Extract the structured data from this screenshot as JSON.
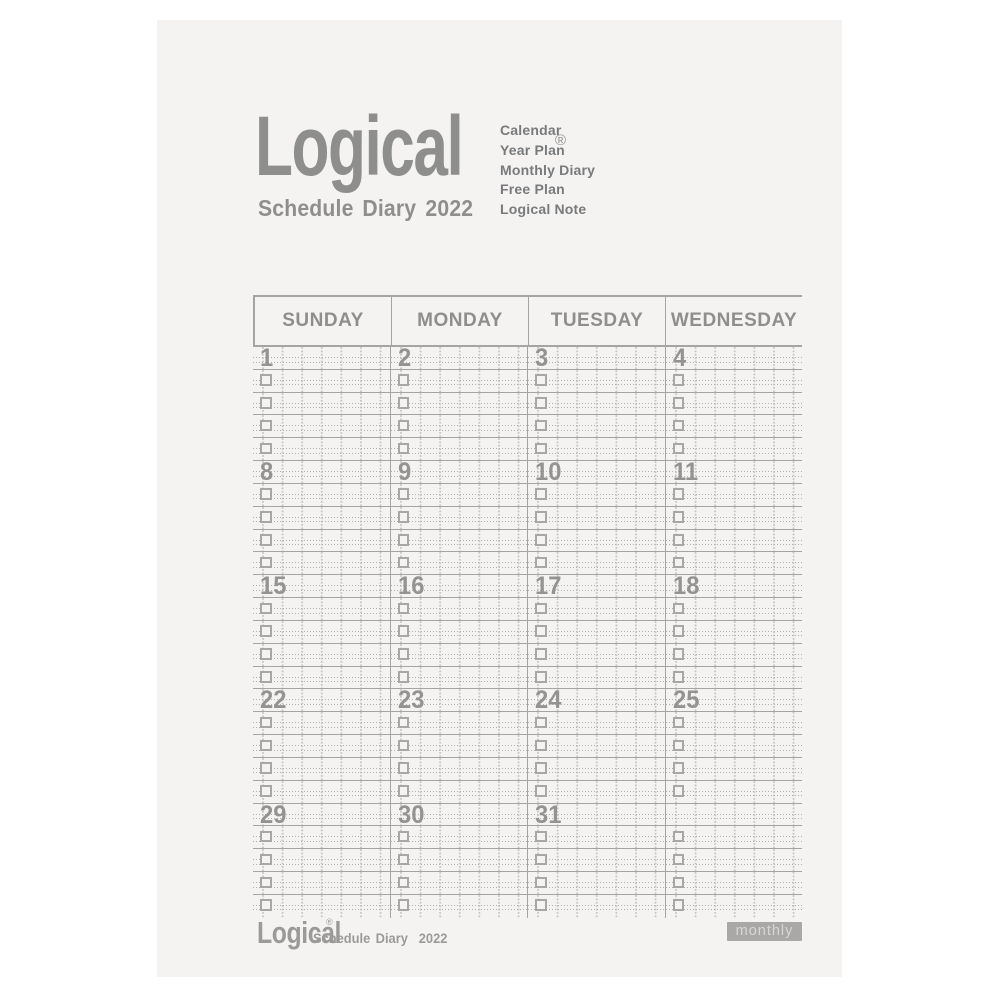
{
  "brand": {
    "logo": "Logical",
    "registered": "®",
    "subtitle": "Schedule Diary",
    "year": "2022"
  },
  "features": {
    "items": [
      "Calendar",
      "Year Plan",
      "Monthly Diary",
      "Free Plan",
      "Logical Note"
    ]
  },
  "calendar": {
    "day_headers": [
      "SUNDAY",
      "MONDAY",
      "TUESDAY",
      "WEDNESDAY"
    ],
    "weeks": [
      [
        "1",
        "2",
        "3",
        "4"
      ],
      [
        "8",
        "9",
        "10",
        "11"
      ],
      [
        "15",
        "16",
        "17",
        "18"
      ],
      [
        "22",
        "23",
        "24",
        "25"
      ],
      [
        "29",
        "30",
        "31",
        ""
      ]
    ],
    "note_rows_per_day": 4,
    "checkbox_icon": "square-outline-checkbox"
  },
  "footer": {
    "logo": "Logical",
    "registered": "®",
    "subtitle": "Schedule Diary",
    "year": "2022",
    "badge": "monthly"
  },
  "colors": {
    "page_background": "#f4f3f1",
    "logo_gray": "#8e8e8c",
    "feature_text": "#797a7c",
    "grid_line": "#a5a4a2",
    "dotted_line": "#b2b1af",
    "date_number": "#939391",
    "badge_background": "#a9a8a6",
    "badge_text": "#d7d6d4"
  }
}
